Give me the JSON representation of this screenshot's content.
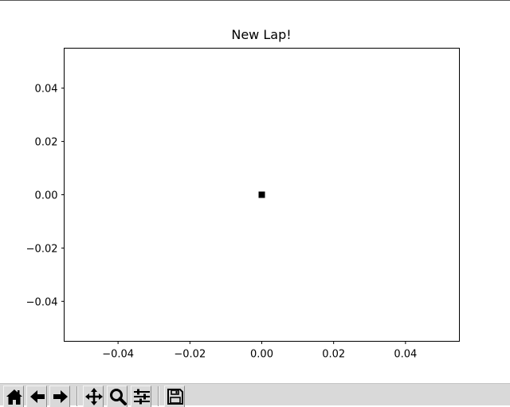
{
  "chart_data": {
    "type": "scatter",
    "title": "New Lap!",
    "xlabel": "",
    "ylabel": "",
    "xlim": [
      -0.055,
      0.055
    ],
    "ylim": [
      -0.055,
      0.055
    ],
    "xticks": [
      -0.04,
      -0.02,
      0.0,
      0.02,
      0.04
    ],
    "xtick_labels": [
      "−0.04",
      "−0.02",
      "0.00",
      "0.02",
      "0.04"
    ],
    "yticks": [
      0.04,
      0.02,
      0.0,
      -0.02,
      -0.04
    ],
    "ytick_labels": [
      "0.04",
      "0.02",
      "0.00",
      "−0.02",
      "−0.04"
    ],
    "grid": false,
    "legend": "none",
    "marker": "square",
    "marker_color": "#000000",
    "series": [
      {
        "x": [
          0.0
        ],
        "y": [
          0.0
        ]
      }
    ]
  },
  "toolbar": {
    "buttons": [
      {
        "name": "home-button",
        "icon": "home-icon"
      },
      {
        "name": "back-button",
        "icon": "arrow-left-icon"
      },
      {
        "name": "forward-button",
        "icon": "arrow-right-icon"
      },
      {
        "name": "pan-button",
        "icon": "move-icon"
      },
      {
        "name": "zoom-button",
        "icon": "magnifier-icon"
      },
      {
        "name": "configure-subplots-button",
        "icon": "sliders-icon"
      },
      {
        "name": "save-button",
        "icon": "floppy-disk-icon"
      }
    ]
  }
}
